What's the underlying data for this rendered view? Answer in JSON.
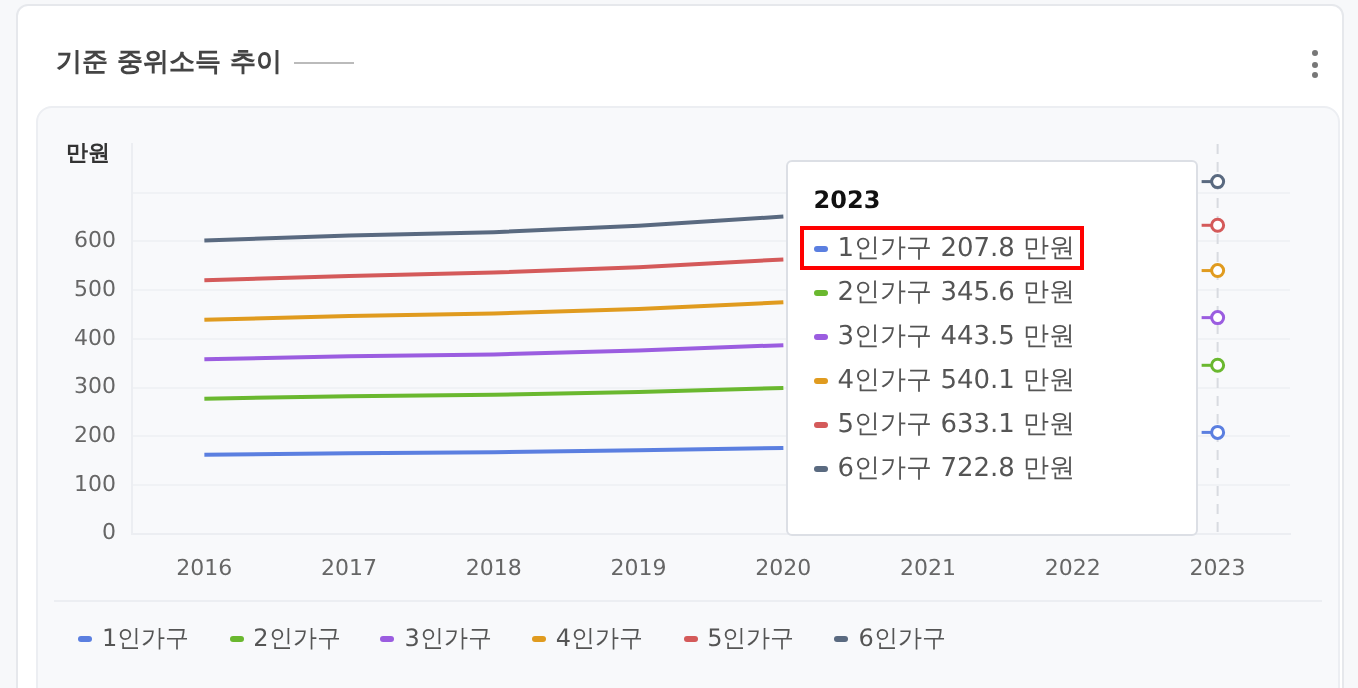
{
  "chart_data": {
    "type": "line",
    "title": "기준 중위소득 추이",
    "ylabel": "만원",
    "categories": [
      "2016",
      "2017",
      "2018",
      "2019",
      "2020",
      "2021",
      "2022",
      "2023"
    ],
    "series": [
      {
        "name": "1인가구",
        "color": "#5b7fe0",
        "values": [
          162,
          165,
          167,
          171,
          176,
          null,
          null,
          207.8
        ]
      },
      {
        "name": "2인가구",
        "color": "#6ab82f",
        "values": [
          277,
          282,
          285,
          291,
          299,
          null,
          null,
          345.6
        ]
      },
      {
        "name": "3인가구",
        "color": "#9b5de0",
        "values": [
          358,
          364,
          368,
          376,
          387,
          null,
          null,
          443.5
        ]
      },
      {
        "name": "4인가구",
        "color": "#e09b1f",
        "values": [
          439,
          447,
          452,
          461,
          475,
          null,
          null,
          540.1
        ]
      },
      {
        "name": "5인가구",
        "color": "#d45a5a",
        "values": [
          520,
          529,
          536,
          547,
          563,
          null,
          null,
          633.1
        ]
      },
      {
        "name": "6인가구",
        "color": "#5a6a80",
        "values": [
          602,
          612,
          619,
          632,
          651,
          null,
          null,
          722.8
        ]
      }
    ],
    "annotations": [
      "1인가구 207.8 만원",
      "2인가구 345.6 만원",
      "3인가구 443.5 만원",
      "4인가구 540.1 만원",
      "5인가구 633.1 만원",
      "6인가구 722.8 만원"
    ],
    "ylim": [
      0,
      800
    ],
    "yticks": [
      0,
      100,
      200,
      300,
      400,
      500,
      600,
      {
        "value": 700,
        "label": null
      }
    ],
    "ref_lines": [
      {
        "axis": "x",
        "value": "2023",
        "color": "#d8dbe0",
        "line_style": "dashed"
      }
    ],
    "grid": "y",
    "legend": "bottom",
    "marker": "none",
    "line_style": "solid"
  }
}
